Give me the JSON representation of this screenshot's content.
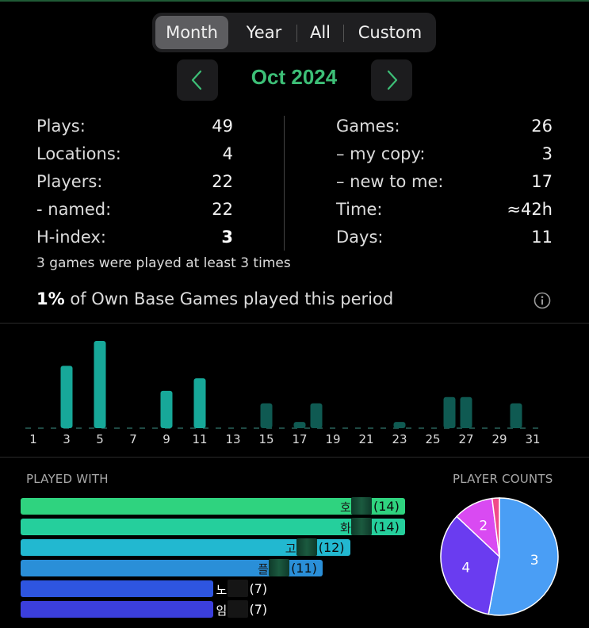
{
  "period_tabs": [
    "Month",
    "Year",
    "All",
    "Custom"
  ],
  "current_period": "Oct 2024",
  "stats_left": [
    {
      "label": "Plays:",
      "value": "49"
    },
    {
      "label": "Locations:",
      "value": "4"
    },
    {
      "label": "Players:",
      "value": "22"
    },
    {
      "label": "- named:",
      "value": "22"
    },
    {
      "label": "H-index:",
      "value": "3"
    }
  ],
  "stats_right": [
    {
      "label": "Games:",
      "value": "26"
    },
    {
      "label": "– my copy:",
      "value": "3"
    },
    {
      "label": "– new to me:",
      "value": "17"
    },
    {
      "label": "Time:",
      "value": "≈42h"
    },
    {
      "label": "Days:",
      "value": "11"
    }
  ],
  "h_index_note": "3 games were played at least 3 times",
  "own_games": {
    "percent": "1%",
    "text": "of Own Base Games played this period"
  },
  "icons": {
    "prev": "chevron-left-icon",
    "next": "chevron-right-icon",
    "info": "info-circle-icon"
  },
  "colors": {
    "accent": "#3dbf77",
    "bar_high": "#17a899",
    "bar_low": "#0f5a52"
  },
  "chart_data": {
    "type": "bar",
    "x": [
      1,
      2,
      3,
      4,
      5,
      6,
      7,
      8,
      9,
      10,
      11,
      12,
      13,
      14,
      15,
      16,
      17,
      18,
      19,
      20,
      21,
      22,
      23,
      24,
      25,
      26,
      27,
      28,
      29,
      30,
      31
    ],
    "values": [
      0,
      0,
      5,
      0,
      7,
      0,
      0,
      0,
      3,
      0,
      4,
      0,
      0,
      0,
      2,
      0,
      0.5,
      2,
      0,
      0,
      0,
      0,
      0.5,
      0,
      0,
      2.5,
      2.5,
      0,
      0,
      2,
      0
    ],
    "tick_labels": [
      "1",
      "3",
      "5",
      "7",
      "9",
      "11",
      "13",
      "15",
      "17",
      "19",
      "21",
      "23",
      "25",
      "27",
      "29",
      "31"
    ]
  },
  "played_with": {
    "title": "PLAYED WITH",
    "items": [
      {
        "name": "호",
        "count": "(14)",
        "value": 14,
        "color": "#2fd37f"
      },
      {
        "name": "화",
        "count": "(14)",
        "value": 14,
        "color": "#25cf9c"
      },
      {
        "name": "고",
        "count": "(12)",
        "value": 12,
        "color": "#22b8d0"
      },
      {
        "name": "플",
        "count": "(11)",
        "value": 11,
        "color": "#2a8fd8"
      },
      {
        "name": "노",
        "count": "(7)",
        "value": 7,
        "color": "#2e55e0"
      },
      {
        "name": "임",
        "count": "(7)",
        "value": 7,
        "color": "#3b3fdc"
      }
    ]
  },
  "player_counts": {
    "title": "PLAYER COUNTS",
    "slices": [
      {
        "label": "3",
        "value": 53,
        "color": "#4a9ef5"
      },
      {
        "label": "4",
        "value": 34,
        "color": "#6a3cf0"
      },
      {
        "label": "2",
        "value": 11,
        "color": "#d94af2"
      },
      {
        "label": "",
        "value": 2,
        "color": "#f04a8a"
      }
    ]
  }
}
